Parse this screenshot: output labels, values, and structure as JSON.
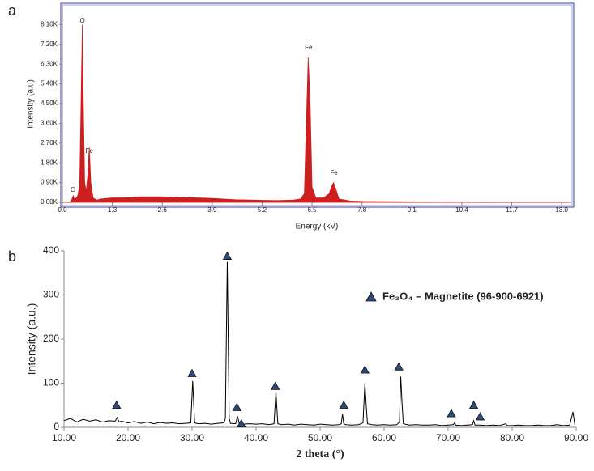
{
  "chart_data": [
    {
      "type": "area",
      "panel_label": "a",
      "xlabel": "Energy (kV)",
      "ylabel": "Intensity (a.u)",
      "color": "#cc1f1f",
      "x": [
        0.0,
        0.1,
        0.2,
        0.25,
        0.28,
        0.32,
        0.4,
        0.45,
        0.5,
        0.52,
        0.54,
        0.58,
        0.62,
        0.66,
        0.7,
        0.74,
        0.8,
        0.9,
        1.0,
        1.3,
        1.6,
        2.0,
        2.6,
        3.0,
        3.5,
        3.9,
        4.5,
        5.0,
        5.2,
        5.6,
        6.0,
        6.2,
        6.3,
        6.35,
        6.4,
        6.45,
        6.5,
        6.6,
        6.8,
        6.95,
        7.0,
        7.06,
        7.12,
        7.2,
        7.5,
        7.8,
        9.1,
        10.4,
        11.7,
        13.0,
        13.2
      ],
      "values": [
        0,
        0,
        20,
        150,
        300,
        120,
        300,
        800,
        6000,
        8100,
        5000,
        900,
        500,
        1200,
        2500,
        900,
        200,
        100,
        150,
        200,
        200,
        250,
        250,
        230,
        200,
        180,
        120,
        100,
        90,
        80,
        100,
        150,
        400,
        3500,
        6600,
        4500,
        700,
        200,
        200,
        400,
        700,
        900,
        600,
        150,
        60,
        40,
        20,
        10,
        5,
        0,
        0
      ],
      "xlim": [
        0,
        13.25
      ],
      "ylim": [
        0,
        8960
      ],
      "xticks": [
        {
          "value": 0,
          "label": "0.0"
        },
        1.3,
        2.6,
        3.9,
        5.2,
        6.5,
        7.8,
        9.1,
        10.4,
        11.7,
        {
          "value": 13,
          "label": "13.0"
        }
      ],
      "yticks": [
        {
          "value": 0,
          "label": "0.00K"
        },
        {
          "value": 900,
          "label": "0.90K"
        },
        {
          "value": 1800,
          "label": "1.80K"
        },
        {
          "value": 2700,
          "label": "2.70K"
        },
        {
          "value": 3600,
          "label": "3.60K"
        },
        {
          "value": 4500,
          "label": "4.50K"
        },
        {
          "value": 5400,
          "label": "5.40K"
        },
        {
          "value": 6300,
          "label": "6.30K"
        },
        {
          "value": 7200,
          "label": "7.20K"
        },
        {
          "value": 8100,
          "label": "8.10K"
        }
      ],
      "annotations": [
        {
          "text": "O",
          "x": 0.52,
          "y": 8260
        },
        {
          "text": "Fe",
          "x": 0.7,
          "y": 2330
        },
        {
          "text": "C",
          "x": 0.27,
          "y": 555
        },
        {
          "text": "Fe",
          "x": 6.41,
          "y": 7040
        },
        {
          "text": "Fe",
          "x": 7.07,
          "y": 1330
        }
      ]
    },
    {
      "type": "line",
      "panel_label": "b",
      "xlabel": "2 theta (°)",
      "ylabel": "Intensity (a.u.)",
      "legend": "upper right",
      "xlim": [
        10,
        90
      ],
      "ylim": [
        0,
        400
      ],
      "xticks": [
        {
          "value": 10,
          "label": "10.00"
        },
        {
          "value": 20,
          "label": "20.00"
        },
        {
          "value": 30,
          "label": "30.00"
        },
        {
          "value": 40,
          "label": "40.00"
        },
        {
          "value": 50,
          "label": "50.00"
        },
        {
          "value": 60,
          "label": "60.00"
        },
        {
          "value": 70,
          "label": "70.00"
        },
        {
          "value": 80,
          "label": "80.00"
        },
        {
          "value": 90,
          "label": "90.00"
        }
      ],
      "yticks": [
        0,
        100,
        200,
        300,
        400
      ],
      "series": [
        {
          "color": "#000000",
          "x": [
            10,
            11,
            12,
            13,
            14,
            15,
            16,
            17,
            18,
            18.3,
            18.6,
            19,
            20,
            21,
            22,
            23,
            24,
            25,
            26,
            27,
            28,
            29,
            29.8,
            30.1,
            30.4,
            31,
            32,
            33,
            34,
            35,
            35.2,
            35.5,
            35.8,
            36,
            36.8,
            37.1,
            37.4,
            38,
            39,
            40,
            41,
            42,
            42.8,
            43.1,
            43.4,
            44,
            45,
            46,
            47,
            48,
            49,
            50,
            51,
            52,
            53,
            53.3,
            53.5,
            53.7,
            54,
            55,
            56,
            56.7,
            57.0,
            57.2,
            57.4,
            58,
            59,
            60,
            61,
            62,
            62.4,
            62.6,
            62.8,
            63.0,
            64,
            65,
            66,
            67,
            68,
            69,
            70,
            70.8,
            71.0,
            71.2,
            72,
            73,
            73.8,
            74.0,
            74.2,
            75,
            76,
            77,
            78,
            79,
            79.2,
            80,
            81,
            82,
            83,
            84,
            85,
            86,
            87,
            88,
            89,
            89.5,
            89.8
          ],
          "values": [
            15,
            20,
            12,
            18,
            14,
            17,
            12,
            15,
            14,
            22,
            12,
            14,
            10,
            13,
            9,
            12,
            8,
            11,
            9,
            10,
            8,
            9,
            10,
            105,
            10,
            8,
            9,
            7,
            9,
            10,
            20,
            375,
            20,
            9,
            8,
            25,
            8,
            7,
            8,
            7,
            8,
            6,
            8,
            80,
            8,
            6,
            7,
            5,
            7,
            6,
            5,
            7,
            6,
            5,
            6,
            8,
            30,
            8,
            6,
            5,
            6,
            10,
            100,
            50,
            8,
            6,
            5,
            6,
            5,
            6,
            12,
            115,
            55,
            8,
            5,
            6,
            5,
            5,
            6,
            4,
            5,
            6,
            10,
            5,
            4,
            5,
            6,
            15,
            5,
            5,
            4,
            5,
            4,
            8,
            4,
            4,
            5,
            4,
            4,
            5,
            4,
            4,
            6,
            4,
            5,
            35,
            5
          ]
        },
        {
          "name": "Fe₃O₄ – Magnetite (96-900-6921)",
          "type": "scatter",
          "marker": "triangle",
          "color": "#2f4b7c",
          "x": [
            18.2,
            30,
            35.5,
            37,
            37.7,
            43,
            53.7,
            57,
            62.3,
            70.5,
            74,
            75
          ],
          "values": [
            50,
            122,
            388,
            45,
            8,
            93,
            50,
            130,
            137,
            31,
            50,
            24
          ]
        }
      ]
    }
  ]
}
